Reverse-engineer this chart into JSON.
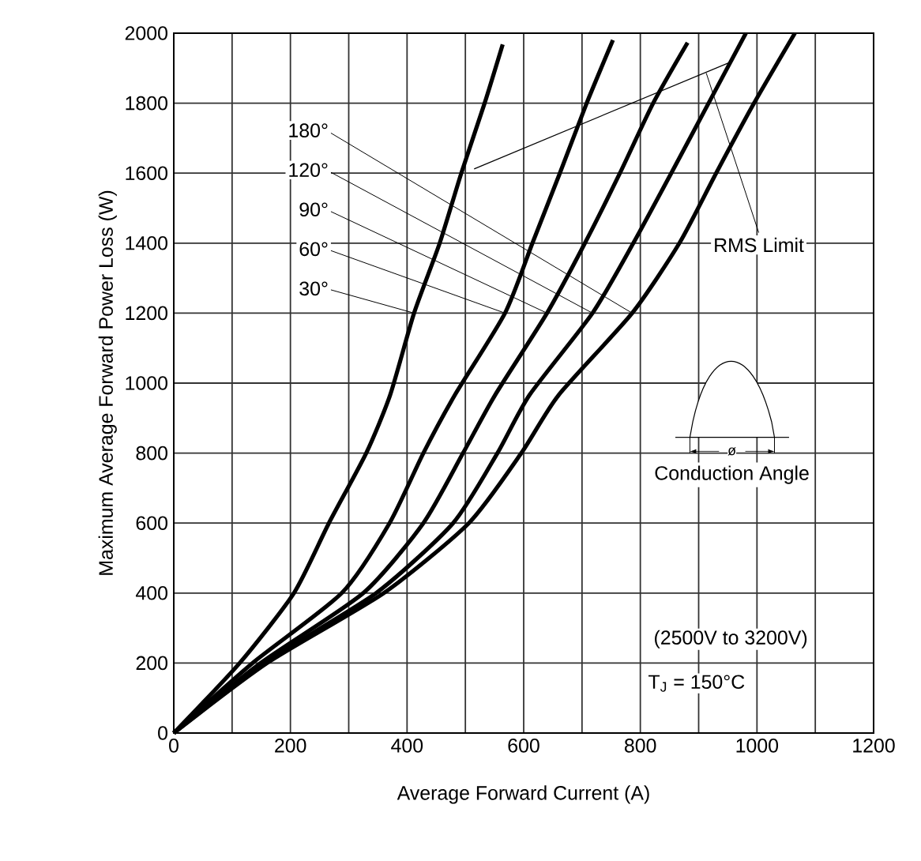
{
  "chart_data": {
    "type": "line",
    "xlabel": "Average Forward Current (A)",
    "ylabel": "Maximum Average Forward Power Loss (W)",
    "xlim": [
      0,
      1200
    ],
    "ylim": [
      0,
      2000
    ],
    "xticks": [
      0,
      {
        "value": 100,
        "label": null
      },
      200,
      {
        "value": 300,
        "label": null
      },
      400,
      {
        "value": 500,
        "label": null
      },
      600,
      {
        "value": 700,
        "label": null
      },
      800,
      {
        "value": 900,
        "label": null
      },
      1000,
      {
        "value": 1100,
        "label": null
      },
      1200
    ],
    "yticks": [
      0,
      200,
      400,
      600,
      800,
      1000,
      1200,
      1400,
      1600,
      1800,
      2000
    ],
    "grid": true,
    "marker": "none",
    "line_style": "solid",
    "series": [
      {
        "color": "#000000",
        "x": [
          0,
          113,
          206,
          266,
          330,
          371,
          412,
          456,
          493,
          533,
          564
        ],
        "values": [
          0,
          200,
          400,
          600,
          800,
          966,
          1200,
          1400,
          1600,
          1800,
          1968
        ]
      },
      {
        "color": "#000000",
        "x": [
          0,
          135,
          288,
          370,
          428,
          482,
          568,
          615,
          662,
          708,
          753
        ],
        "values": [
          0,
          200,
          400,
          600,
          800,
          966,
          1200,
          1400,
          1600,
          1800,
          1980
        ]
      },
      {
        "color": "#000000",
        "x": [
          0,
          149,
          325,
          428,
          496,
          551,
          640,
          705,
          765,
          822,
          881
        ],
        "values": [
          0,
          200,
          400,
          600,
          800,
          966,
          1200,
          1400,
          1600,
          1800,
          1973
        ]
      },
      {
        "color": "#000000",
        "x": [
          0,
          155,
          347,
          479,
          555,
          610,
          718,
          788,
          853,
          917,
          981
        ],
        "values": [
          0,
          200,
          400,
          600,
          800,
          966,
          1200,
          1400,
          1600,
          1800,
          2000
        ]
      },
      {
        "color": "#000000",
        "x": [
          0,
          160,
          360,
          506,
          596,
          660,
          786,
          867,
          930,
          995,
          1065
        ],
        "values": [
          0,
          200,
          400,
          600,
          800,
          966,
          1200,
          1400,
          1600,
          1800,
          2000
        ]
      },
      {
        "color": "#000000",
        "x": [
          515,
          957
        ],
        "values": [
          1612,
          1919
        ]
      }
    ],
    "annotations": [
      {
        "text": "30°",
        "x": 412,
        "y": 1200
      },
      {
        "text": "60°",
        "x": 568,
        "y": 1200
      },
      {
        "text": "90°",
        "x": 640,
        "y": 1200
      },
      {
        "text": "120°",
        "x": 718,
        "y": 1200
      },
      {
        "text": "180°",
        "x": 786,
        "y": 1200
      },
      {
        "text": "RMS Limit",
        "x": 913,
        "y": 1886
      },
      "ø",
      "Conduction Angle",
      "(2500V to 3200V)",
      "T$_{J}$ = 150°C"
    ]
  }
}
